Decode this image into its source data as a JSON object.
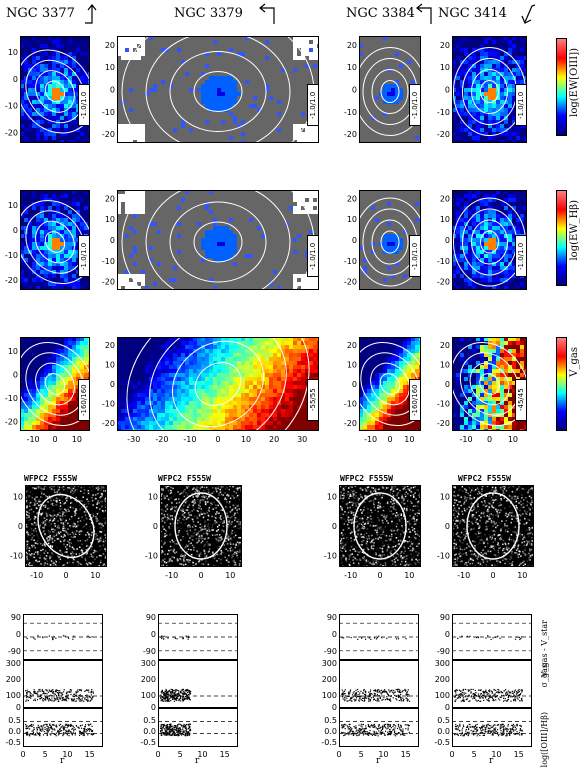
{
  "galaxies": [
    {
      "name": "NGC 3377",
      "arrow": "up",
      "rows": [
        "-1.0/1.0",
        "-1.0/1.0",
        "-160/160"
      ]
    },
    {
      "name": "NGC 3379",
      "arrow": "left",
      "rows": [
        "-1.0/1.0",
        "-1.0/1.0",
        "-55/55"
      ]
    },
    {
      "name": "NGC 3384",
      "arrow": "left",
      "rows": [
        "-1.0/1.0",
        "-1.0/1.0",
        "-160/160"
      ]
    },
    {
      "name": "NGC 3414",
      "arrow": "down-left",
      "rows": [
        "-1.0/1.0",
        "-1.0/1.0",
        "-45/45"
      ]
    }
  ],
  "colorbar_labels": [
    "log(EW[OIII])",
    "log(EW_Hβ)",
    "V_gas"
  ],
  "wfpc2_titles": [
    "WFPC2 F555W",
    "WFPC2 F555W",
    "WFPC2 F555W",
    "WFPC2 F555W"
  ],
  "profile_labels": [
    "V_gas - V_star",
    "σ_gas",
    "log([OIII]/Hβ)"
  ],
  "profile_xlabel": "r",
  "icons": {
    "orientation": "arrow-icon"
  },
  "chart_data": [
    {
      "type": "heatmap",
      "title": "",
      "galaxy": "NGC 3377",
      "row": "log(EW[OIII])",
      "range": "-1.0/1.0",
      "xticks": [],
      "yticks": [
        10,
        0,
        -10,
        -20
      ],
      "ylim": [
        -24,
        16
      ]
    },
    {
      "type": "heatmap",
      "title": "",
      "galaxy": "NGC 3379",
      "row": "log(EW[OIII])",
      "range": "-1.0/1.0",
      "xticks": [],
      "yticks": [
        20,
        10,
        0,
        -10,
        -20
      ],
      "ylim": [
        -24,
        24
      ]
    },
    {
      "type": "heatmap",
      "title": "",
      "galaxy": "NGC 3384",
      "row": "log(EW[OIII])",
      "range": "-1.0/1.0",
      "xticks": [],
      "yticks": [
        20,
        10,
        0,
        -10,
        -20
      ],
      "ylim": [
        -24,
        24
      ]
    },
    {
      "type": "heatmap",
      "title": "",
      "galaxy": "NGC 3414",
      "row": "log(EW[OIII])",
      "range": "-1.0/1.0",
      "xticks": [],
      "yticks": [
        20,
        10,
        0,
        -10,
        -20
      ],
      "ylim": [
        -24,
        24
      ]
    },
    {
      "type": "heatmap",
      "title": "",
      "galaxy": "NGC 3377",
      "row": "V_gas",
      "range": "-160/160",
      "xticks": [
        -10,
        0,
        10
      ],
      "yticks": [
        10,
        0,
        -10,
        -20
      ],
      "xlim": [
        -16,
        16
      ],
      "ylim": [
        -24,
        16
      ]
    },
    {
      "type": "heatmap",
      "title": "",
      "galaxy": "NGC 3379",
      "row": "V_gas",
      "range": "-55/55",
      "xticks": [
        -30,
        -20,
        -10,
        0,
        10,
        20,
        30
      ],
      "yticks": [
        20,
        10,
        0,
        -10,
        -20
      ],
      "xlim": [
        -36,
        36
      ],
      "ylim": [
        -24,
        24
      ]
    },
    {
      "type": "heatmap",
      "title": "",
      "galaxy": "NGC 3384",
      "row": "V_gas",
      "range": "-160/160",
      "xticks": [
        -10,
        0,
        10
      ],
      "yticks": [
        20,
        10,
        0,
        -10,
        -20
      ],
      "xlim": [
        -16,
        16
      ],
      "ylim": [
        -24,
        24
      ]
    },
    {
      "type": "heatmap",
      "title": "",
      "galaxy": "NGC 3414",
      "row": "V_gas",
      "range": "-45/45",
      "xticks": [
        -10,
        0,
        10
      ],
      "yticks": [
        20,
        10,
        0,
        -10,
        -20
      ],
      "xlim": [
        -16,
        16
      ],
      "ylim": [
        -24,
        24
      ]
    },
    {
      "type": "image",
      "title": "WFPC2 F555W",
      "xticks": [
        -10,
        0,
        10
      ],
      "yticks": [
        10,
        0,
        -10
      ]
    },
    {
      "type": "scatter",
      "title": "",
      "ylabel": "V_gas - V_star",
      "yticks": [
        90,
        0,
        -90
      ]
    },
    {
      "type": "scatter",
      "title": "",
      "ylabel": "σ_gas",
      "yticks": [
        300,
        200,
        100,
        0
      ]
    },
    {
      "type": "scatter",
      "title": "",
      "ylabel": "log([OIII]/Hβ)",
      "yticks": [
        0.5,
        0.0,
        -0.5
      ]
    },
    {
      "type": "scatter",
      "title": "",
      "xlabel": "r",
      "xticks": [
        0,
        5,
        10,
        15
      ],
      "xlim": [
        0,
        18
      ]
    }
  ]
}
